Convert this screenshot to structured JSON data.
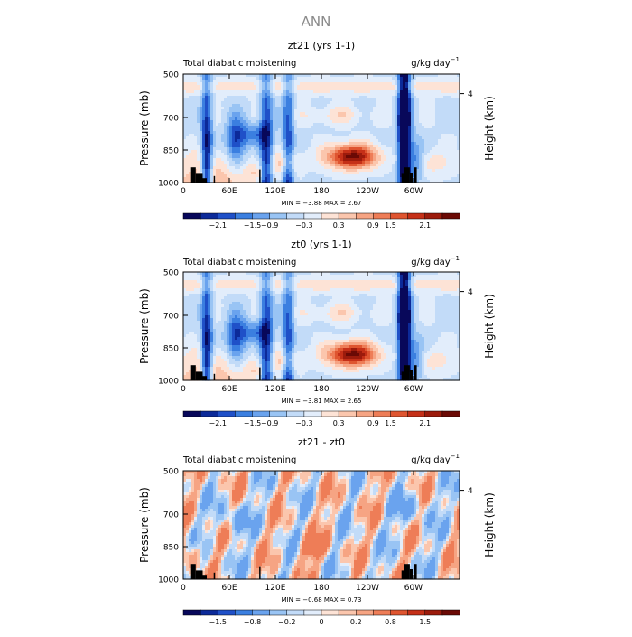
{
  "page": {
    "supertitle": "ANN"
  },
  "chart_data": [
    {
      "type": "heatmap",
      "title": "zt21 (yrs 1-1)",
      "left_subtitle": "Total diabatic moistening",
      "right_subtitle": "g/kg day",
      "units_exponent": "−1",
      "ylabel": "Pressure (mb)",
      "ylabel_right": "Height (km)",
      "x_ticklabels": [
        "0",
        "60E",
        "120E",
        "180",
        "120W",
        "60W"
      ],
      "y_ticklabels": [
        "500",
        "700",
        "850",
        "1000"
      ],
      "y_right_ticklabels": [
        "4"
      ],
      "minmax_text": "MIN =   −3.88   MAX =     2.67",
      "colorbar_ticks": [
        "−2.1",
        "−1.5",
        "−0.9",
        "−0.3",
        "0.3",
        "0.9",
        "1.5",
        "2.1"
      ],
      "colorbar_colors": [
        "#08085a",
        "#0c2a99",
        "#1f50c8",
        "#3b7fe0",
        "#6aa3ee",
        "#99c4f4",
        "#c2dbf8",
        "#e2edfb",
        "#fde3d6",
        "#fbc6ad",
        "#f6a483",
        "#ee7d57",
        "#df5530",
        "#c53018",
        "#9c1b0c",
        "#6b0a05"
      ],
      "field_min": -3.88,
      "field_max": 2.67
    },
    {
      "type": "heatmap",
      "title": "zt0 (yrs 1-1)",
      "left_subtitle": "Total diabatic moistening",
      "right_subtitle": "g/kg day",
      "units_exponent": "−1",
      "ylabel": "Pressure (mb)",
      "ylabel_right": "Height (km)",
      "x_ticklabels": [
        "0",
        "60E",
        "120E",
        "180",
        "120W",
        "60W"
      ],
      "y_ticklabels": [
        "500",
        "700",
        "850",
        "1000"
      ],
      "y_right_ticklabels": [
        "4"
      ],
      "minmax_text": "MIN =   −3.81   MAX =     2.65",
      "colorbar_ticks": [
        "−2.1",
        "−1.5",
        "−0.9",
        "−0.3",
        "0.3",
        "0.9",
        "1.5",
        "2.1"
      ],
      "colorbar_colors": [
        "#08085a",
        "#0c2a99",
        "#1f50c8",
        "#3b7fe0",
        "#6aa3ee",
        "#99c4f4",
        "#c2dbf8",
        "#e2edfb",
        "#fde3d6",
        "#fbc6ad",
        "#f6a483",
        "#ee7d57",
        "#df5530",
        "#c53018",
        "#9c1b0c",
        "#6b0a05"
      ],
      "field_min": -3.81,
      "field_max": 2.65
    },
    {
      "type": "heatmap",
      "title": "zt21 - zt0",
      "left_subtitle": "Total diabatic moistening",
      "right_subtitle": "g/kg day",
      "units_exponent": "−1",
      "ylabel": "Pressure (mb)",
      "ylabel_right": "Height (km)",
      "x_ticklabels": [
        "0",
        "60E",
        "120E",
        "180",
        "120W",
        "60W"
      ],
      "y_ticklabels": [
        "500",
        "700",
        "850",
        "1000"
      ],
      "y_right_ticklabels": [
        "4"
      ],
      "minmax_text": "MIN =   −0.68   MAX =     0.73",
      "colorbar_ticks": [
        "−1.5",
        "−0.8",
        "−0.2",
        "0",
        "0.2",
        "0.8",
        "1.5"
      ],
      "colorbar_colors": [
        "#08085a",
        "#0c2a99",
        "#1f50c8",
        "#3b7fe0",
        "#6aa3ee",
        "#99c4f4",
        "#c2dbf8",
        "#e2edfb",
        "#fde3d6",
        "#fbc6ad",
        "#f6a483",
        "#ee7d57",
        "#df5530",
        "#c53018",
        "#9c1b0c",
        "#6b0a05"
      ],
      "field_min": -0.68,
      "field_max": 0.73
    }
  ]
}
